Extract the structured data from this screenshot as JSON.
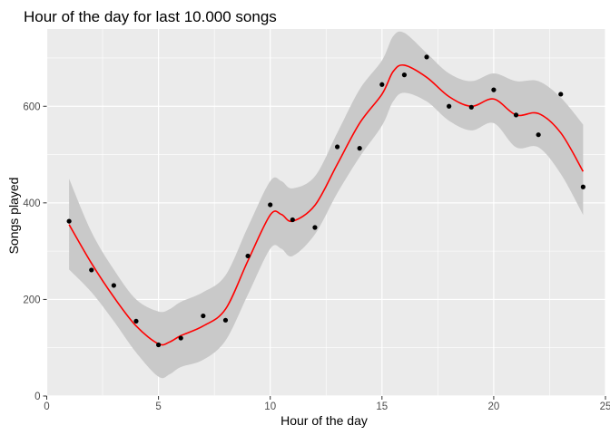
{
  "chart_data": {
    "type": "scatter",
    "title": "Hour of the day for last 10.000 songs",
    "xlabel": "Hour of the day",
    "ylabel": "Songs played",
    "xlim": [
      0,
      25
    ],
    "ylim": [
      0,
      760
    ],
    "x_ticks": [
      0,
      5,
      10,
      15,
      20,
      25
    ],
    "y_ticks": [
      0,
      200,
      400,
      600
    ],
    "grid": true,
    "panel_background": "#EBEBEB",
    "grid_color": "#FFFFFF",
    "point_color": "#000000",
    "smooth_color": "#FF0000",
    "ribbon_color": "#C9C9C9",
    "points": {
      "x": [
        1,
        2,
        3,
        4,
        5,
        6,
        7,
        8,
        9,
        10,
        11,
        12,
        13,
        14,
        15,
        16,
        17,
        18,
        19,
        20,
        21,
        22,
        23,
        24
      ],
      "y": [
        362,
        261,
        229,
        155,
        106,
        120,
        166,
        157,
        290,
        396,
        365,
        349,
        516,
        513,
        645,
        665,
        702,
        600,
        598,
        634,
        582,
        541,
        625,
        433
      ]
    },
    "smooth": {
      "x": [
        1,
        2,
        3,
        4,
        5,
        5.5,
        6,
        7,
        8,
        9,
        10,
        10.5,
        11,
        12,
        13,
        14,
        15,
        15.5,
        16,
        17,
        18,
        19,
        20,
        21,
        22,
        23,
        24
      ],
      "y": [
        355,
        275,
        205,
        145,
        108,
        112,
        125,
        145,
        180,
        280,
        375,
        376,
        362,
        395,
        480,
        565,
        625,
        672,
        685,
        660,
        620,
        600,
        615,
        582,
        585,
        545,
        465
      ],
      "lower": [
        262,
        215,
        155,
        90,
        40,
        45,
        60,
        75,
        115,
        210,
        305,
        305,
        290,
        335,
        420,
        495,
        560,
        610,
        628,
        610,
        570,
        550,
        565,
        515,
        515,
        460,
        375
      ],
      "upper": [
        450,
        340,
        262,
        200,
        175,
        180,
        195,
        215,
        250,
        350,
        445,
        445,
        430,
        455,
        545,
        635,
        695,
        745,
        752,
        710,
        668,
        652,
        668,
        652,
        652,
        618,
        562
      ]
    }
  }
}
